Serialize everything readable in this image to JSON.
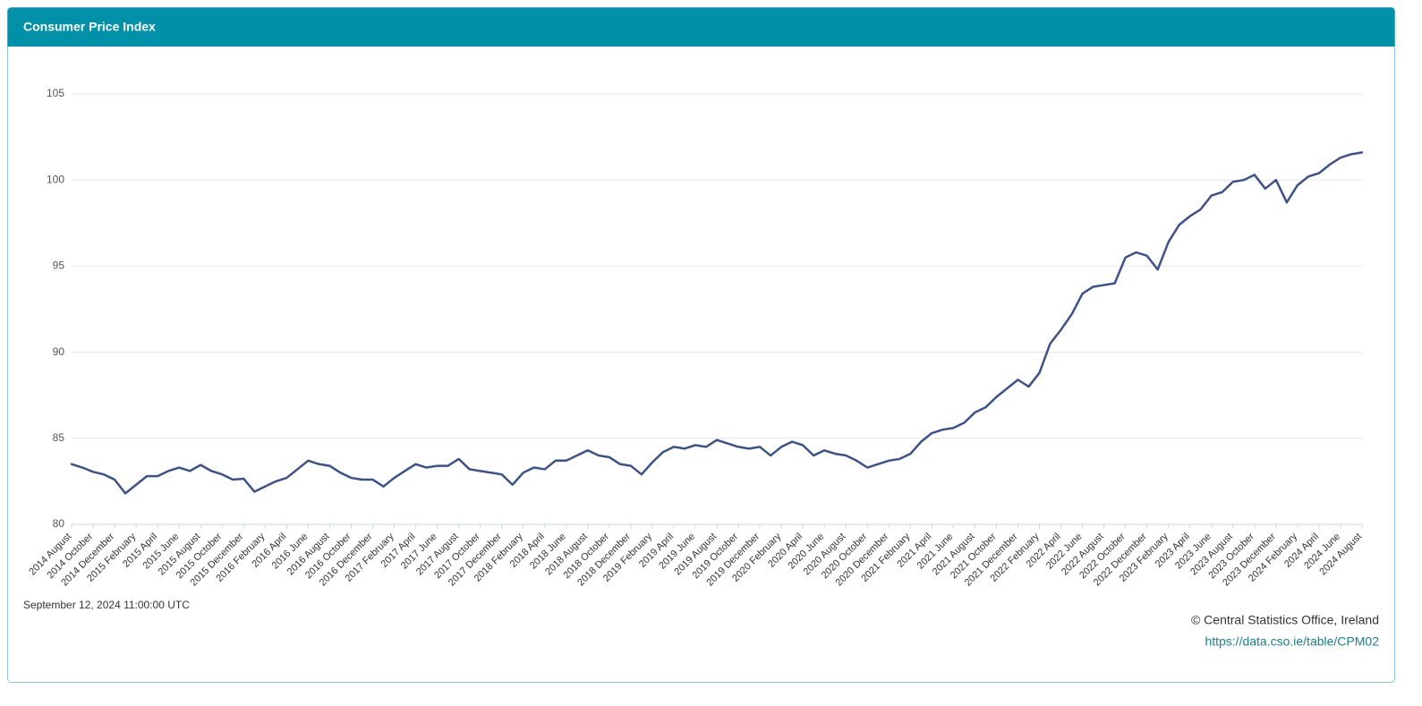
{
  "chart_data": {
    "type": "line",
    "title": "Consumer Price Index",
    "categories": [
      "2014 August",
      null,
      "2014 October",
      null,
      "2014 December",
      null,
      "2015 February",
      null,
      "2015 April",
      null,
      "2015 June",
      null,
      "2015 August",
      null,
      "2015 October",
      null,
      "2015 December",
      null,
      "2016 February",
      null,
      "2016 April",
      null,
      "2016 June",
      null,
      "2016 August",
      null,
      "2016 October",
      null,
      "2016 December",
      null,
      "2017 February",
      null,
      "2017 April",
      null,
      "2017 June",
      null,
      "2017 August",
      null,
      "2017 October",
      null,
      "2017 December",
      null,
      "2018 February",
      null,
      "2018 April",
      null,
      "2018 June",
      null,
      "2018 August",
      null,
      "2018 October",
      null,
      "2018 December",
      null,
      "2019 February",
      null,
      "2019 April",
      null,
      "2019 June",
      null,
      "2019 August",
      null,
      "2019 October",
      null,
      "2019 December",
      null,
      "2020 February",
      null,
      "2020 April",
      null,
      "2020 June",
      null,
      "2020 August",
      null,
      "2020 October",
      null,
      "2020 December",
      null,
      "2021 February",
      null,
      "2021 April",
      null,
      "2021 June",
      null,
      "2021 August",
      null,
      "2021 October",
      null,
      "2021 December",
      null,
      "2022 February",
      null,
      "2022 April",
      null,
      "2022 June",
      null,
      "2022 August",
      null,
      "2022 October",
      null,
      "2022 December",
      null,
      "2023 February",
      null,
      "2023 April",
      null,
      "2023 June",
      null,
      "2023 August",
      null,
      "2023 October",
      null,
      "2023 December",
      null,
      "2024 February",
      null,
      "2024 April",
      null,
      "2024 June",
      null,
      "2024 August"
    ],
    "series": [
      {
        "color": "#3d5285",
        "values": [
          83.5,
          83.3,
          83.05,
          82.9,
          82.6,
          81.8,
          82.3,
          82.8,
          82.8,
          83.1,
          83.3,
          83.1,
          83.45,
          83.1,
          82.9,
          82.6,
          82.65,
          81.9,
          82.2,
          82.5,
          82.7,
          83.2,
          83.7,
          83.5,
          83.4,
          83.0,
          82.7,
          82.6,
          82.6,
          82.2,
          82.7,
          83.1,
          83.5,
          83.3,
          83.4,
          83.4,
          83.8,
          83.2,
          83.1,
          83.0,
          82.9,
          82.3,
          83.0,
          83.3,
          83.2,
          83.7,
          83.7,
          84.0,
          84.3,
          84.0,
          83.9,
          83.5,
          83.4,
          82.9,
          83.6,
          84.2,
          84.5,
          84.4,
          84.6,
          84.5,
          84.9,
          84.7,
          84.5,
          84.4,
          84.5,
          84.0,
          84.5,
          84.8,
          84.6,
          84.0,
          84.3,
          84.1,
          84.0,
          83.7,
          83.3,
          83.5,
          83.7,
          83.8,
          84.1,
          84.8,
          85.3,
          85.5,
          85.6,
          85.9,
          86.5,
          86.8,
          87.4,
          87.9,
          88.4,
          88.0,
          88.8,
          90.5,
          91.3,
          92.2,
          93.4,
          93.8,
          93.9,
          94.0,
          95.5,
          95.8,
          95.6,
          94.8,
          96.4,
          97.4,
          97.9,
          98.3,
          99.1,
          99.3,
          99.9,
          100.0,
          100.3,
          99.5,
          100.0,
          98.7,
          99.7,
          100.2,
          100.4,
          100.9,
          101.3,
          101.5,
          101.6
        ]
      }
    ],
    "ylim": [
      80,
      105
    ],
    "yticks": [
      80,
      85,
      90,
      95,
      100,
      105
    ],
    "grid": true
  },
  "footer": {
    "timestamp": "September 12, 2024 11:00:00 UTC",
    "credit": "© Central Statistics Office, Ireland",
    "link": "https://data.cso.ie/table/CPM02"
  }
}
